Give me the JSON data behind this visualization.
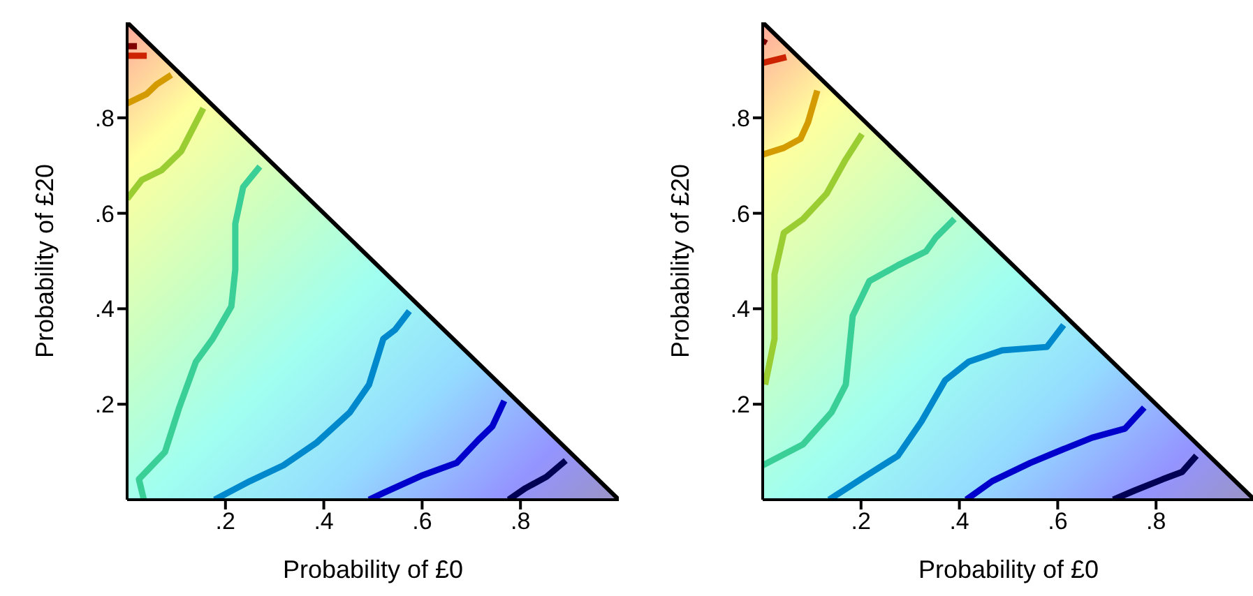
{
  "chart_data": [
    {
      "type": "line",
      "xlabel": "Probability of £0",
      "ylabel": "Probability of £20",
      "xlim": [
        0,
        1
      ],
      "ylim": [
        0,
        1
      ],
      "xticks": [
        {
          "value": 0.2,
          "label": ".2"
        },
        {
          "value": 0.4,
          "label": ".4"
        },
        {
          "value": 0.6,
          "label": ".6"
        },
        {
          "value": 0.8,
          "label": ".8"
        }
      ],
      "yticks": [
        {
          "value": 0.2,
          "label": ".2"
        },
        {
          "value": 0.4,
          "label": ".4"
        },
        {
          "value": 0.6,
          "label": ".6"
        },
        {
          "value": 0.8,
          "label": ".8"
        }
      ],
      "series": [
        {
          "type": "area",
          "color": "#000000",
          "x": [
            0,
            1
          ],
          "values": [
            1,
            0
          ]
        },
        {
          "color": "#7f0000",
          "x": [
            0,
            0.02
          ],
          "values": [
            0.95,
            0.95
          ]
        },
        {
          "color": "#cc2200",
          "x": [
            0,
            0.04
          ],
          "values": [
            0.93,
            0.93
          ]
        },
        {
          "color": "#d49b00",
          "x": [
            0,
            0.04,
            0.06,
            0.09
          ],
          "values": [
            0.83,
            0.85,
            0.87,
            0.89
          ]
        },
        {
          "color": "#9acd32",
          "x": [
            0,
            0.03,
            0.07,
            0.11,
            0.125,
            0.155
          ],
          "values": [
            0.63,
            0.67,
            0.69,
            0.73,
            0.76,
            0.82
          ]
        },
        {
          "color": "#3acf96",
          "x": [
            0.034,
            0.024,
            0.077,
            0.106,
            0.14,
            0.174,
            0.212,
            0.22,
            0.22,
            0.236,
            0.27
          ],
          "values": [
            0,
            0.043,
            0.1,
            0.193,
            0.289,
            0.337,
            0.405,
            0.482,
            0.578,
            0.655,
            0.698
          ]
        },
        {
          "color": "#0088cc",
          "x": [
            0.178,
            0.25,
            0.318,
            0.386,
            0.453,
            0.492,
            0.521,
            0.545,
            0.574
          ],
          "values": [
            0,
            0.039,
            0.072,
            0.12,
            0.183,
            0.241,
            0.337,
            0.356,
            0.395
          ]
        },
        {
          "color": "#0000cc",
          "x": [
            0.492,
            0.521,
            0.598,
            0.67,
            0.714,
            0.743,
            0.767
          ],
          "values": [
            0,
            0.014,
            0.05,
            0.077,
            0.125,
            0.154,
            0.207
          ]
        },
        {
          "color": "#000055",
          "x": [
            0.776,
            0.81,
            0.853,
            0.892
          ],
          "values": [
            0,
            0.024,
            0.048,
            0.082
          ]
        }
      ]
    },
    {
      "type": "line",
      "xlabel": "Probability of £0",
      "ylabel": "Probability of £20",
      "xlim": [
        0,
        1
      ],
      "ylim": [
        0,
        1
      ],
      "xticks": [
        {
          "value": 0.2,
          "label": ".2"
        },
        {
          "value": 0.4,
          "label": ".4"
        },
        {
          "value": 0.6,
          "label": ".6"
        },
        {
          "value": 0.8,
          "label": ".8"
        }
      ],
      "yticks": [
        {
          "value": 0.2,
          "label": ".2"
        },
        {
          "value": 0.4,
          "label": ".4"
        },
        {
          "value": 0.6,
          "label": ".6"
        },
        {
          "value": 0.8,
          "label": ".8"
        }
      ],
      "series": [
        {
          "type": "area",
          "color": "#000000",
          "x": [
            0,
            1
          ],
          "values": [
            1,
            0
          ]
        },
        {
          "color": "#7f0000",
          "x": [
            0,
            0.005
          ],
          "values": [
            0.955,
            0.965
          ]
        },
        {
          "color": "#cc2200",
          "x": [
            0,
            0.048
          ],
          "values": [
            0.915,
            0.927
          ]
        },
        {
          "color": "#d49b00",
          "x": [
            0,
            0.043,
            0.077,
            0.092,
            0.111
          ],
          "values": [
            0.723,
            0.737,
            0.756,
            0.79,
            0.857
          ]
        },
        {
          "color": "#9acd32",
          "x": [
            0.005,
            0.024,
            0.024,
            0.043,
            0.082,
            0.13,
            0.169,
            0.202
          ],
          "values": [
            0.241,
            0.337,
            0.472,
            0.559,
            0.588,
            0.641,
            0.713,
            0.766
          ]
        },
        {
          "color": "#3acf96",
          "x": [
            0,
            0.082,
            0.14,
            0.169,
            0.183,
            0.217,
            0.275,
            0.332,
            0.352,
            0.39
          ],
          "values": [
            0.072,
            0.116,
            0.183,
            0.241,
            0.385,
            0.458,
            0.491,
            0.52,
            0.549,
            0.588
          ]
        },
        {
          "color": "#0088cc",
          "x": [
            0.135,
            0.207,
            0.275,
            0.323,
            0.371,
            0.419,
            0.487,
            0.578,
            0.612
          ],
          "values": [
            0,
            0.048,
            0.092,
            0.164,
            0.25,
            0.289,
            0.313,
            0.32,
            0.366
          ]
        },
        {
          "color": "#0000cc",
          "x": [
            0.414,
            0.467,
            0.544,
            0.612,
            0.67,
            0.737,
            0.776
          ],
          "values": [
            0,
            0.039,
            0.077,
            0.106,
            0.13,
            0.149,
            0.193
          ]
        },
        {
          "color": "#000055",
          "x": [
            0.713,
            0.756,
            0.814,
            0.853,
            0.882
          ],
          "values": [
            0,
            0.019,
            0.043,
            0.058,
            0.092
          ]
        }
      ]
    }
  ]
}
